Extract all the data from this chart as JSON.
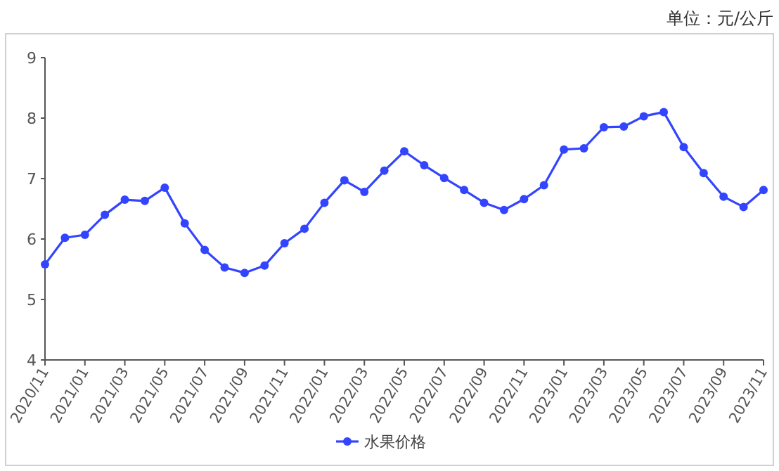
{
  "chart_data": {
    "type": "line",
    "ylabel": "单位：元/公斤",
    "categories": [
      "2020/11",
      null,
      "2021/01",
      null,
      "2021/03",
      null,
      "2021/05",
      null,
      "2021/07",
      null,
      "2021/09",
      null,
      "2021/11",
      null,
      "2022/01",
      null,
      "2022/03",
      null,
      "2022/05",
      null,
      "2022/07",
      null,
      "2022/09",
      null,
      "2022/11",
      null,
      "2023/01",
      null,
      "2023/03",
      null,
      "2023/05",
      null,
      "2023/07",
      null,
      "2023/09",
      null,
      "2023/11"
    ],
    "series": [
      {
        "name": "水果价格",
        "color": "#3344ff",
        "values": [
          5.58,
          6.02,
          6.07,
          6.4,
          6.65,
          6.63,
          6.85,
          6.26,
          5.82,
          5.53,
          5.44,
          5.56,
          5.93,
          6.17,
          6.6,
          6.97,
          6.78,
          7.13,
          7.45,
          7.22,
          7.01,
          6.81,
          6.6,
          6.48,
          6.66,
          6.89,
          7.48,
          7.5,
          7.85,
          7.86,
          8.03,
          8.1,
          7.52,
          7.09,
          6.7,
          6.53,
          6.81
        ]
      }
    ],
    "ylim": [
      4,
      9
    ],
    "yticks": [
      4,
      5,
      6,
      7,
      8,
      9
    ],
    "grid": false,
    "legend": "bottom",
    "marker": "circle",
    "line_style": "solid"
  }
}
